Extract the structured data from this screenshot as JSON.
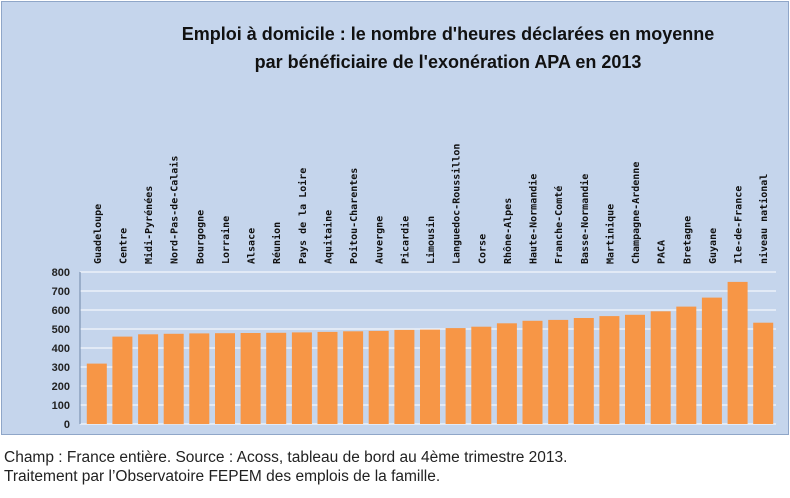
{
  "chart_data": {
    "type": "bar",
    "title_lines": [
      "Emploi à domicile : le nombre d'heures déclarées en moyenne",
      "par bénéficiaire de l'exonération APA en 2013"
    ],
    "categories": [
      "Guadeloupe",
      "Centre",
      "Midi-Pyrénées",
      "Nord-Pas-de-Calais",
      "Bourgogne",
      "Lorraine",
      "Alsace",
      "Réunion",
      "Pays de la Loire",
      "Aquitaine",
      "Poitou-Charentes",
      "Auvergne",
      "Picardie",
      "Limousin",
      "Languedoc-Roussillon",
      "Corse",
      "Rhône-Alpes",
      "Haute-Normandie",
      "Franche-Comté",
      "Basse-Normandie",
      "Martinique",
      "Champagne-Ardenne",
      "PACA",
      "Bretagne",
      "Guyane",
      "Ile-de-France",
      "niveau national"
    ],
    "values": [
      318,
      460,
      472,
      475,
      477,
      478,
      479,
      480,
      482,
      485,
      488,
      490,
      495,
      497,
      505,
      512,
      530,
      543,
      548,
      558,
      568,
      575,
      593,
      618,
      665,
      748,
      533
    ],
    "ylim": [
      0,
      800
    ],
    "yticks": [
      0,
      100,
      200,
      300,
      400,
      500,
      600,
      700,
      800
    ],
    "xlabel": "",
    "ylabel": "",
    "grid": true,
    "legend": "none",
    "colors": {
      "bar": "#f79646",
      "background": "#c5d5ec",
      "grid": "#ffffff"
    }
  },
  "caption": {
    "line1": "Champ : France entière. Source : Acoss, tableau de bord au 4ème trimestre 2013.",
    "line2": "Traitement par l’Observatoire FEPEM des emplois de la famille."
  }
}
